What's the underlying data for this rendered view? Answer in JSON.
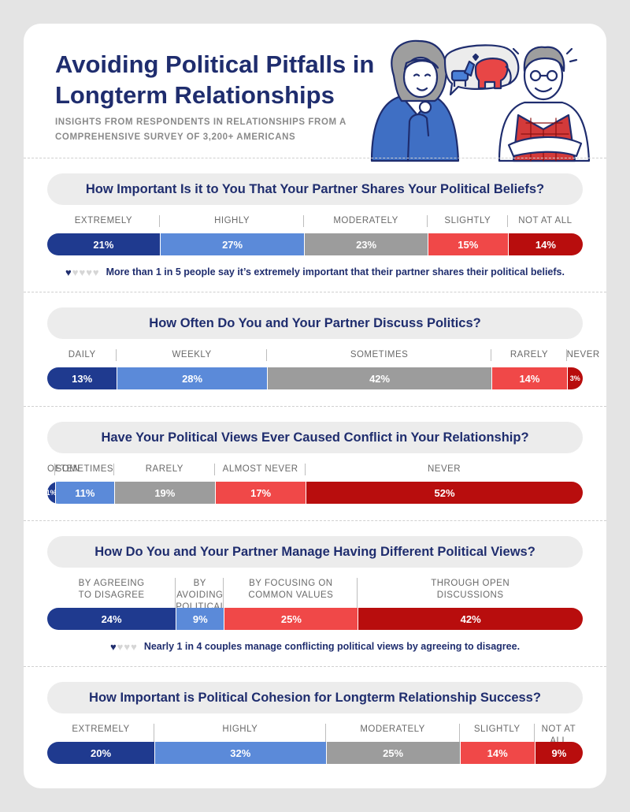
{
  "header": {
    "title": "Avoiding Political Pitfalls in Longterm Relationships",
    "subtitle": "INSIGHTS FROM RESPONDENTS IN RELATIONSHIPS FROM A COMPREHENSIVE SURVEY OF 3,200+ AMERICANS"
  },
  "colors": {
    "c1": "#1f3a8f",
    "c2": "#5b8ad9",
    "c3": "#9c9c9c",
    "c4": "#f04848",
    "c5": "#b80d0d"
  },
  "chart_data": [
    {
      "type": "bar",
      "stacked": true,
      "orientation": "horizontal",
      "title": "How Important Is it to You That Your Partner Shares Your Political Beliefs?",
      "categories": [
        "EXTREMELY",
        "HIGHLY",
        "MODERATELY",
        "SLIGHTLY",
        "NOT AT ALL"
      ],
      "values": [
        21,
        27,
        23,
        15,
        14
      ],
      "value_labels": [
        "21%",
        "27%",
        "23%",
        "15%",
        "14%"
      ],
      "note": "More than 1 in 5 people say it’s extremely important that their partner shares their political beliefs.",
      "note_hearts": {
        "filled": 1,
        "total": 5
      }
    },
    {
      "type": "bar",
      "stacked": true,
      "orientation": "horizontal",
      "title": "How Often Do You and Your Partner Discuss Politics?",
      "categories": [
        "DAILY",
        "WEEKLY",
        "SOMETIMES",
        "RARELY",
        "NEVER"
      ],
      "values": [
        13,
        28,
        42,
        14,
        3
      ],
      "value_labels": [
        "13%",
        "28%",
        "42%",
        "14%",
        "3%"
      ]
    },
    {
      "type": "bar",
      "stacked": true,
      "orientation": "horizontal",
      "title": "Have Your Political Views Ever Caused Conflict in Your Relationship?",
      "categories": [
        "OFTEN",
        "SOMETIMES",
        "RARELY",
        "ALMOST NEVER",
        "NEVER"
      ],
      "values": [
        1,
        11,
        19,
        17,
        52
      ],
      "value_labels": [
        "1%",
        "11%",
        "19%",
        "17%",
        "52%"
      ]
    },
    {
      "type": "bar",
      "stacked": true,
      "orientation": "horizontal",
      "title": "How Do You and Your Partner Manage Having Different Political Views?",
      "categories": [
        "BY AGREEING TO DISAGREE",
        "BY AVOIDING POLITICAL TOPICS",
        "BY FOCUSING ON COMMON VALUES",
        "THROUGH OPEN DISCUSSIONS"
      ],
      "category_lines": [
        [
          "BY AGREEING",
          "TO DISAGREE"
        ],
        [
          "BY AVOIDING",
          "POLITICAL TOPICS"
        ],
        [
          "BY FOCUSING ON",
          "COMMON VALUES"
        ],
        [
          "THROUGH OPEN",
          "DISCUSSIONS"
        ]
      ],
      "values": [
        24,
        9,
        25,
        42
      ],
      "value_labels": [
        "24%",
        "9%",
        "25%",
        "42%"
      ],
      "note": "Nearly 1 in 4 couples manage conflicting political views by agreeing to disagree.",
      "note_hearts": {
        "filled": 1,
        "total": 4
      }
    },
    {
      "type": "bar",
      "stacked": true,
      "orientation": "horizontal",
      "title": "How Important is Political Cohesion for Longterm Relationship Success?",
      "categories": [
        "EXTREMELY",
        "HIGHLY",
        "MODERATELY",
        "SLIGHTLY",
        "NOT AT ALL"
      ],
      "values": [
        20,
        32,
        25,
        14,
        9
      ],
      "value_labels": [
        "20%",
        "32%",
        "25%",
        "14%",
        "9%"
      ]
    }
  ]
}
